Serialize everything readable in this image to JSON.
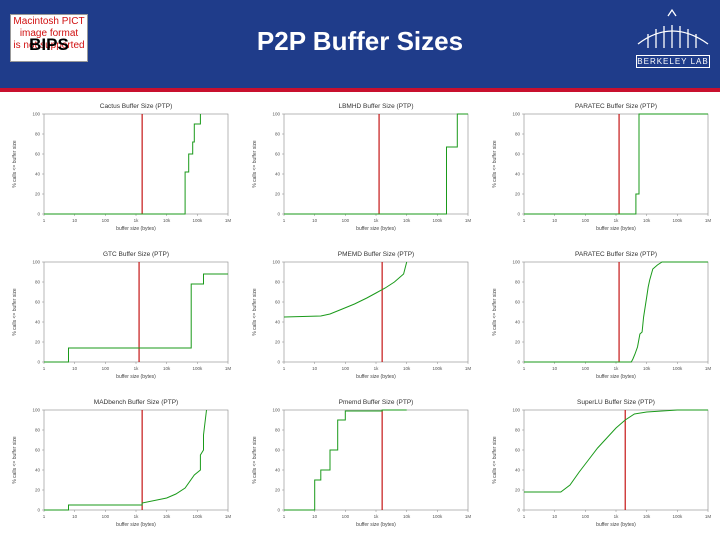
{
  "slide": {
    "title": "P2P Buffer Sizes",
    "pict_placeholder": [
      "Macintosh PICT",
      "image format",
      "is not supported"
    ],
    "label": "BIPS",
    "logo_text": "BERKELEY LAB",
    "colors": {
      "header": "#1f3c8a",
      "rule": "#c8102e",
      "series": "#1a9a1a",
      "marker": "#c00000"
    }
  },
  "chart_data": [
    {
      "type": "line",
      "title": "Cactus Buffer Size (PTP)",
      "xlabel": "buffer size (bytes)",
      "ylabel": "% calls <= buffer size",
      "xticks": [
        "1",
        "10",
        "100",
        "1k",
        "10k",
        "100k",
        "1M"
      ],
      "yticks": [
        "0",
        "20",
        "40",
        "60",
        "80",
        "100"
      ],
      "ylim": [
        0,
        100
      ],
      "xlim": [
        0,
        6
      ],
      "marker_x": 3.2,
      "series": [
        {
          "name": "calls",
          "x": [
            0,
            4.6,
            4.6,
            4.72,
            4.72,
            4.85,
            4.85,
            4.9,
            4.9,
            5.1,
            5.1
          ],
          "y": [
            0,
            0,
            42,
            42,
            60,
            60,
            72,
            72,
            90,
            90,
            100
          ]
        }
      ]
    },
    {
      "type": "line",
      "title": "LBMHD Buffer Size (PTP)",
      "xlabel": "buffer size (bytes)",
      "ylabel": "% calls <= buffer size",
      "xticks": [
        "1",
        "10",
        "100",
        "1k",
        "10k",
        "100k",
        "1M"
      ],
      "yticks": [
        "0",
        "20",
        "40",
        "60",
        "80",
        "100"
      ],
      "ylim": [
        0,
        100
      ],
      "xlim": [
        0,
        6
      ],
      "marker_x": 3.1,
      "series": [
        {
          "name": "calls",
          "x": [
            0,
            5.3,
            5.3,
            5.65,
            5.65,
            6
          ],
          "y": [
            0,
            0,
            67,
            67,
            100,
            100
          ]
        }
      ]
    },
    {
      "type": "line",
      "title": "PARATEC Buffer Size (PTP)",
      "xlabel": "buffer size (bytes)",
      "ylabel": "% calls <= buffer size",
      "xticks": [
        "1",
        "10",
        "100",
        "1k",
        "10k",
        "100k",
        "1M"
      ],
      "yticks": [
        "0",
        "20",
        "40",
        "60",
        "80",
        "100"
      ],
      "ylim": [
        0,
        100
      ],
      "xlim": [
        0,
        6
      ],
      "marker_x": 3.1,
      "series": [
        {
          "name": "calls",
          "x": [
            0,
            3.65,
            3.65,
            3.75,
            3.75,
            6
          ],
          "y": [
            0,
            0,
            20,
            20,
            100,
            100
          ]
        }
      ]
    },
    {
      "type": "line",
      "title": "GTC Buffer Size (PTP)",
      "xlabel": "buffer size (bytes)",
      "ylabel": "% calls <= buffer size",
      "xticks": [
        "1",
        "10",
        "100",
        "1k",
        "10k",
        "100k",
        "1M"
      ],
      "yticks": [
        "0",
        "20",
        "40",
        "60",
        "80",
        "100"
      ],
      "ylim": [
        0,
        100
      ],
      "xlim": [
        0,
        6
      ],
      "marker_x": 3.1,
      "series": [
        {
          "name": "calls",
          "x": [
            0,
            0.8,
            0.8,
            4.8,
            4.8,
            5.2,
            5.2,
            6
          ],
          "y": [
            0,
            0,
            14,
            14,
            78,
            78,
            88,
            88
          ]
        }
      ]
    },
    {
      "type": "line",
      "title": "PMEMD Buffer Size (PTP)",
      "xlabel": "buffer size (bytes)",
      "ylabel": "% calls <= buffer size",
      "xticks": [
        "1",
        "10",
        "100",
        "1k",
        "10k",
        "100k",
        "1M"
      ],
      "yticks": [
        "0",
        "20",
        "40",
        "60",
        "80",
        "100"
      ],
      "ylim": [
        0,
        100
      ],
      "xlim": [
        0,
        6
      ],
      "marker_x": 3.2,
      "series": [
        {
          "name": "calls",
          "x": [
            0,
            1.2,
            1.5,
            1.9,
            2.3,
            2.7,
            3.0,
            3.3,
            3.6,
            3.9,
            4.0
          ],
          "y": [
            45,
            46,
            48,
            53,
            58,
            64,
            69,
            74,
            80,
            88,
            100
          ]
        }
      ]
    },
    {
      "type": "line",
      "title": "PARATEC Buffer Size (PTP)",
      "xlabel": "buffer size (bytes)",
      "ylabel": "% calls <= buffer size",
      "xticks": [
        "1",
        "10",
        "100",
        "1k",
        "10k",
        "100k",
        "1M"
      ],
      "yticks": [
        "0",
        "20",
        "40",
        "60",
        "80",
        "100"
      ],
      "ylim": [
        0,
        100
      ],
      "xlim": [
        0,
        6
      ],
      "marker_x": 3.1,
      "series": [
        {
          "name": "calls",
          "x": [
            0,
            3.5,
            3.55,
            3.62,
            3.7,
            3.78,
            3.85,
            3.9,
            4.0,
            4.05,
            4.1,
            4.2,
            4.35,
            4.5,
            4.7,
            6
          ],
          "y": [
            0,
            0,
            3,
            8,
            15,
            28,
            30,
            45,
            65,
            75,
            82,
            93,
            97,
            100,
            100,
            100
          ]
        }
      ]
    },
    {
      "type": "line",
      "title": "MADbench Buffer Size (PTP)",
      "xlabel": "buffer size (bytes)",
      "ylabel": "% calls <= buffer size",
      "xticks": [
        "1",
        "10",
        "100",
        "1k",
        "10k",
        "100k",
        "1M"
      ],
      "yticks": [
        "0",
        "20",
        "40",
        "60",
        "80",
        "100"
      ],
      "ylim": [
        0,
        100
      ],
      "xlim": [
        0,
        6
      ],
      "marker_x": 3.2,
      "series": [
        {
          "name": "calls",
          "x": [
            0,
            0.8,
            0.8,
            3.2,
            3.2,
            4.0,
            4.3,
            4.6,
            4.9,
            5.1,
            5.1,
            5.2,
            5.2,
            5.3
          ],
          "y": [
            0,
            0,
            5,
            5,
            7,
            12,
            16,
            22,
            35,
            40,
            55,
            60,
            75,
            100
          ]
        }
      ]
    },
    {
      "type": "line",
      "title": "Pmemd Buffer Size (PTP)",
      "xlabel": "buffer size (bytes)",
      "ylabel": "% calls <= buffer size",
      "xticks": [
        "1",
        "10",
        "100",
        "1k",
        "10k",
        "100k",
        "1M"
      ],
      "yticks": [
        "0",
        "20",
        "40",
        "60",
        "80",
        "100"
      ],
      "ylim": [
        0,
        100
      ],
      "xlim": [
        0,
        6
      ],
      "marker_x": 3.2,
      "series": [
        {
          "name": "calls",
          "x": [
            0,
            1.0,
            1.0,
            1.2,
            1.2,
            1.5,
            1.5,
            1.75,
            1.75,
            2.0,
            2.0,
            3.2,
            3.2,
            4.0
          ],
          "y": [
            0,
            0,
            30,
            30,
            40,
            40,
            60,
            60,
            90,
            90,
            99,
            99,
            100,
            100
          ]
        }
      ]
    },
    {
      "type": "line",
      "title": "SuperLU Buffer Size (PTP)",
      "xlabel": "buffer size (bytes)",
      "ylabel": "% calls <= buffer size",
      "xticks": [
        "1",
        "10",
        "100",
        "1k",
        "10k",
        "100k",
        "1M"
      ],
      "yticks": [
        "0",
        "20",
        "40",
        "60",
        "80",
        "100"
      ],
      "ylim": [
        0,
        100
      ],
      "xlim": [
        0,
        6
      ],
      "marker_x": 3.3,
      "series": [
        {
          "name": "calls",
          "x": [
            0,
            1.2,
            1.5,
            1.8,
            2.1,
            2.4,
            2.7,
            3.0,
            3.3,
            3.6,
            4.0,
            4.5,
            5.0,
            5.5,
            6
          ],
          "y": [
            18,
            18,
            25,
            38,
            50,
            62,
            72,
            82,
            90,
            96,
            98,
            99,
            100,
            100,
            100
          ]
        }
      ]
    }
  ]
}
